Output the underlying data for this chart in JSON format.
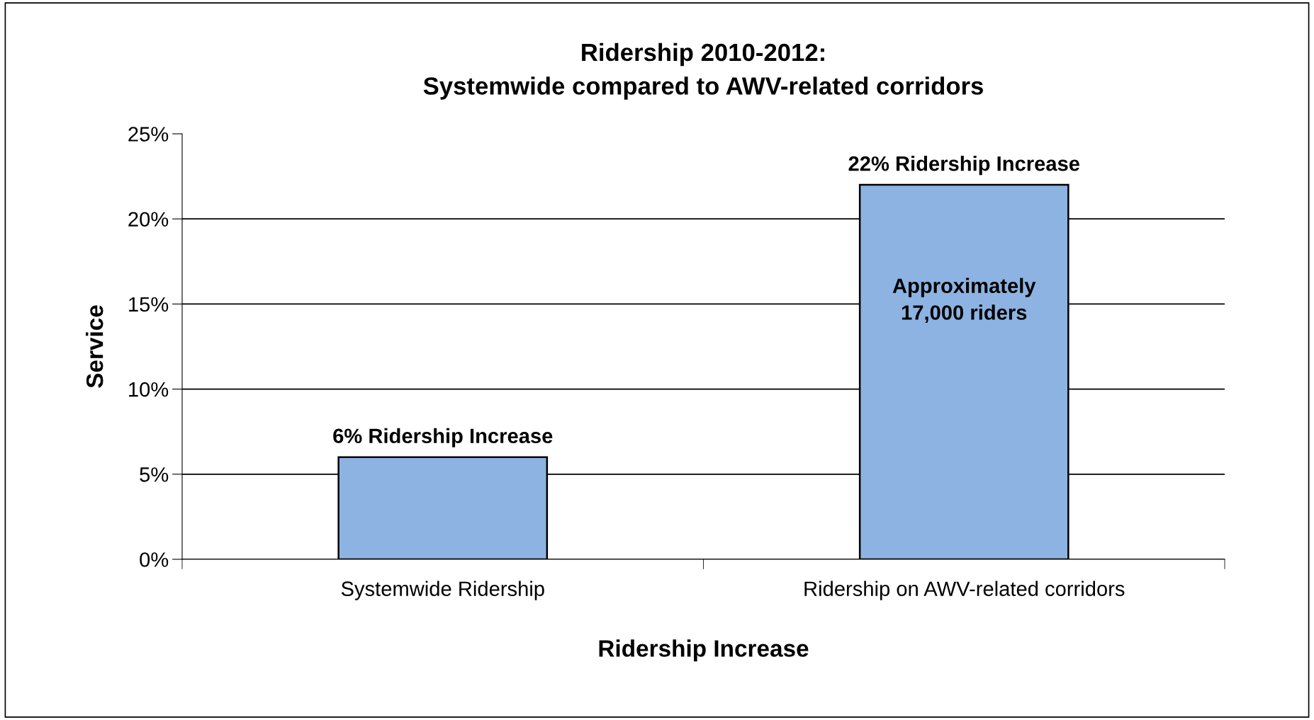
{
  "chart_data": {
    "type": "bar",
    "title": "Ridership 2010-2012:\nSystemwide compared to AWV-related corridors",
    "xlabel": "Ridership Increase",
    "ylabel": "Service",
    "categories": [
      "Systemwide Ridership",
      "Ridership on AWV-related corridors"
    ],
    "values": [
      6,
      22
    ],
    "color": "#8db3e2",
    "value_labels": [
      "6% Ridership Increase",
      "22% Ridership Increase"
    ],
    "annotations": [
      "Approximately\n17,000 riders"
    ],
    "ylim": [
      0,
      25
    ],
    "yticks": [
      {
        "value": 0,
        "label": "0%"
      },
      {
        "value": 5,
        "label": "5%"
      },
      {
        "value": 10,
        "label": "10%"
      },
      {
        "value": 15,
        "label": "15%"
      },
      {
        "value": 20,
        "label": "20%"
      },
      {
        "value": 25,
        "label": "25%"
      }
    ],
    "grid": "y",
    "legend": false
  }
}
